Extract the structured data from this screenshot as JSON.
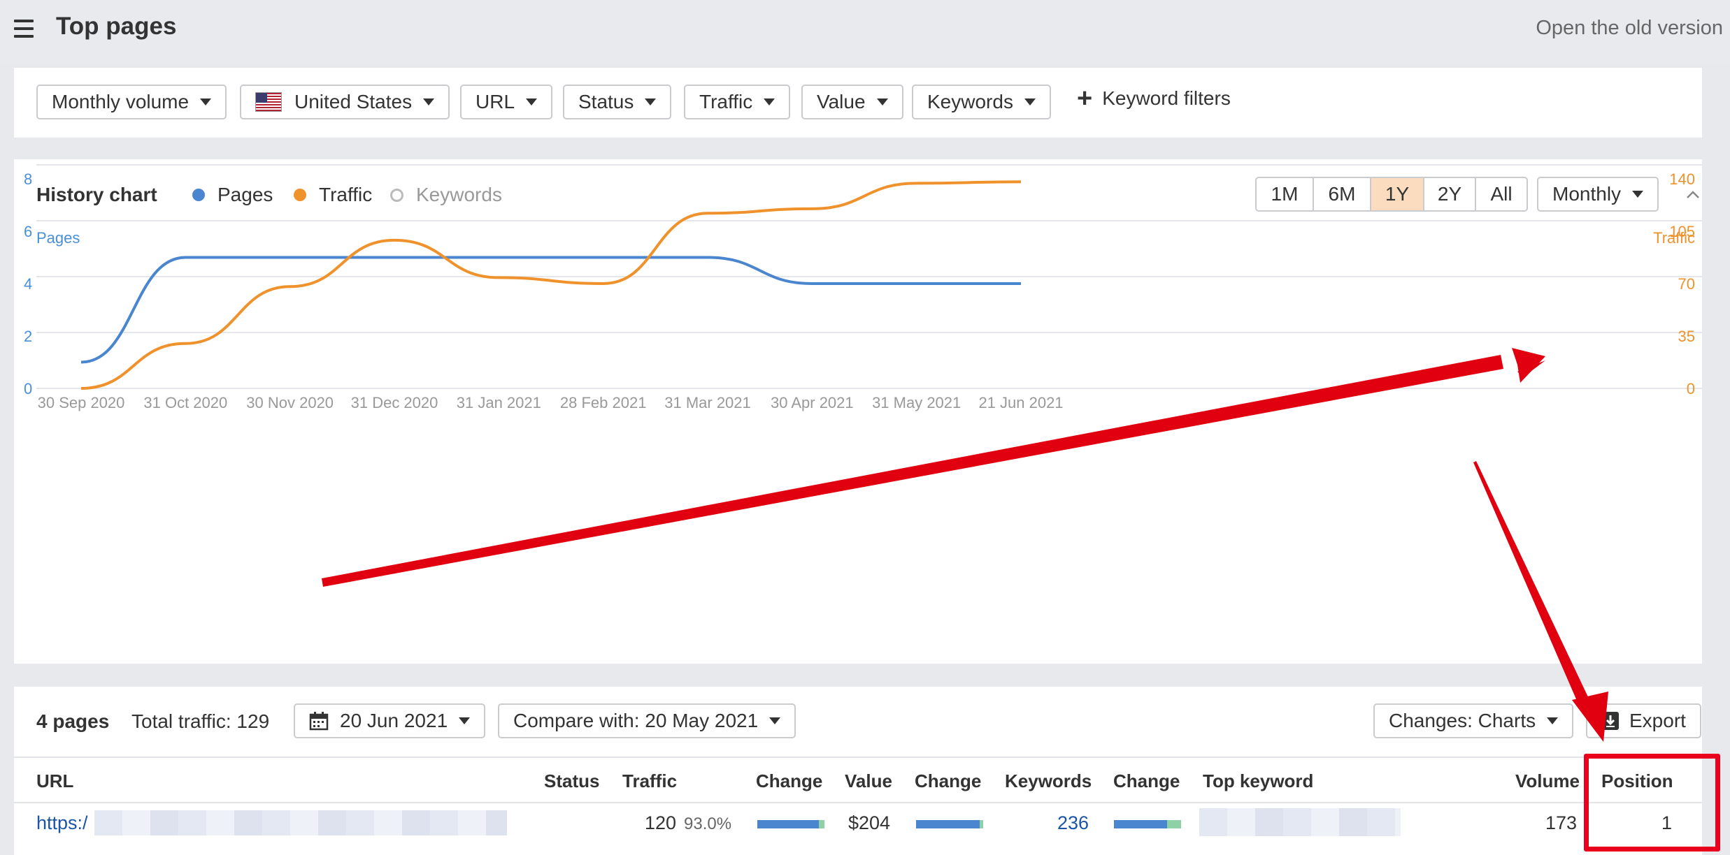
{
  "header": {
    "title": "Top pages",
    "old_version_link": "Open the old version"
  },
  "filters": {
    "monthly_volume": "Monthly volume",
    "country": "United States",
    "url": "URL",
    "status": "Status",
    "traffic": "Traffic",
    "value": "Value",
    "keywords": "Keywords",
    "keyword_filters": "Keyword filters"
  },
  "history": {
    "title": "History chart",
    "legend": [
      {
        "label": "Pages",
        "color": "#4a86cf",
        "active": true
      },
      {
        "label": "Traffic",
        "color": "#f0922c",
        "active": true
      },
      {
        "label": "Keywords",
        "color": "#bbbbbb",
        "active": false
      }
    ],
    "ranges": [
      "1M",
      "6M",
      "1Y",
      "2Y",
      "All"
    ],
    "active_range": "1Y",
    "interval": "Monthly",
    "left_axis_label": "Pages",
    "right_axis_label": "Traffic"
  },
  "chart_data": {
    "type": "line",
    "x": [
      "30 Sep 2020",
      "31 Oct 2020",
      "30 Nov 2020",
      "31 Dec 2020",
      "31 Jan 2021",
      "28 Feb 2021",
      "31 Mar 2021",
      "30 Apr 2021",
      "31 May 2021",
      "21 Jun 2021"
    ],
    "series": [
      {
        "name": "Pages",
        "axis": "left",
        "color": "#4a86cf",
        "values": [
          1,
          5,
          5,
          5,
          5,
          5,
          5,
          4,
          4,
          4
        ]
      },
      {
        "name": "Traffic",
        "axis": "right",
        "color": "#f0922c",
        "values": [
          0,
          30,
          68,
          99,
          74,
          70,
          117,
          120,
          137,
          138
        ]
      }
    ],
    "left_ticks": [
      "0",
      "2",
      "4",
      "6",
      "8"
    ],
    "right_ticks": [
      "0",
      "35",
      "70",
      "105",
      "140"
    ],
    "ylim_left": [
      0,
      8
    ],
    "ylim_right": [
      0,
      140
    ],
    "grid": true
  },
  "table": {
    "pages_count": "4 pages",
    "total_traffic": "Total traffic: 129",
    "date": "20 Jun 2021",
    "compare": "Compare with: 20 May 2021",
    "changes": "Changes: Charts",
    "export": "Export",
    "columns": [
      "URL",
      "Status",
      "Traffic",
      "Change",
      "Value",
      "Change",
      "Keywords",
      "Change",
      "Top keyword",
      "Volume",
      "Position"
    ],
    "rows": [
      {
        "url": "https:/",
        "traffic": "120",
        "traffic_share": "93.0%",
        "value": "$204",
        "keywords": "236",
        "volume": "173",
        "position": "1"
      }
    ]
  },
  "colors": {
    "accent_blue": "#4a86cf",
    "accent_orange": "#f0922c",
    "annotation_red": "#e8001c",
    "active_range_bg": "#fbdcbf"
  }
}
